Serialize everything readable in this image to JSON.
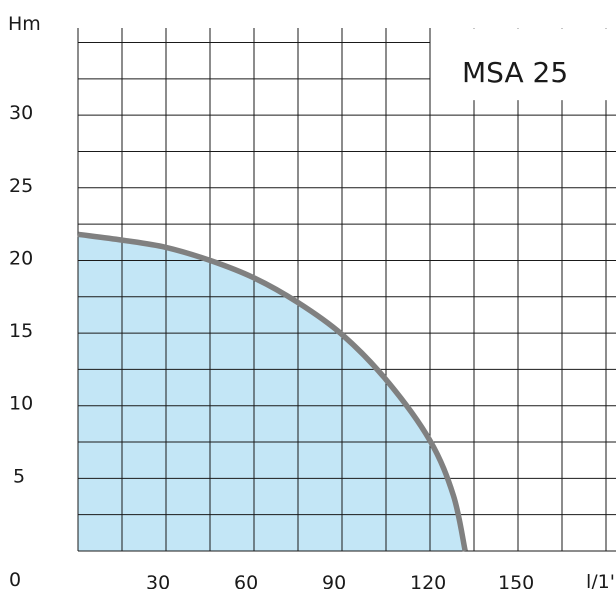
{
  "chart_data": {
    "type": "area",
    "title": "MSA 25",
    "ylabel": "Hm",
    "xlabel": "l/1'",
    "origin_label": "0",
    "xlim": [
      0,
      180
    ],
    "ylim": [
      0,
      36
    ],
    "x_ticks": [
      "30",
      "60",
      "90",
      "120",
      "150"
    ],
    "y_ticks": [
      "5",
      "10",
      "15",
      "20",
      "25",
      "30"
    ],
    "grid": true,
    "series": [
      {
        "x": [
          0,
          15,
          30,
          45,
          60,
          75,
          90,
          105,
          120,
          128,
          132
        ],
        "y": [
          21.8,
          21.4,
          20.9,
          20.0,
          18.8,
          17.1,
          14.9,
          11.8,
          7.6,
          3.8,
          0
        ],
        "line_color": "#808080",
        "fill_color": "#c3e6f6"
      }
    ],
    "grid_color": "#1a1a1a"
  }
}
